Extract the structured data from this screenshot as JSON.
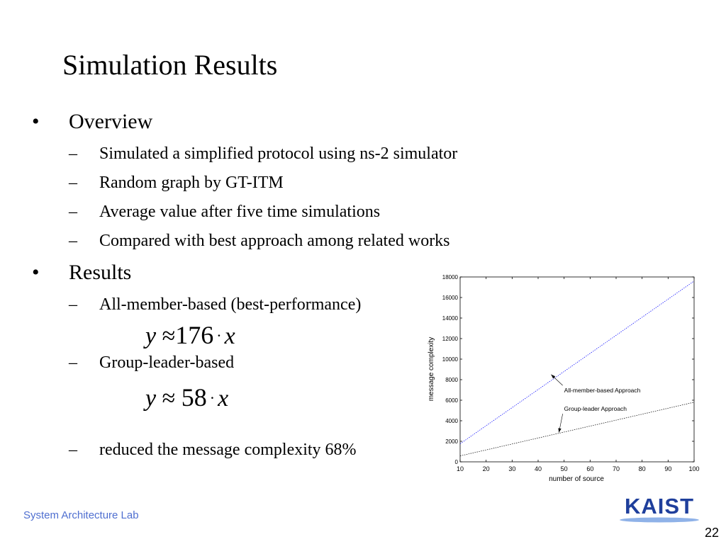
{
  "slide": {
    "title": "Simulation Results",
    "bullets": [
      {
        "marker": "•",
        "label": "Overview",
        "subitems": [
          {
            "marker": "–",
            "label": "Simulated a simplified protocol using ns-2 simulator"
          },
          {
            "marker": "–",
            "label": "Random graph by GT-ITM"
          },
          {
            "marker": "–",
            "label": "Average value after five time simulations"
          },
          {
            "marker": "–",
            "label": "Compared with best approach among related works"
          }
        ]
      },
      {
        "marker": "•",
        "label": "Results",
        "subitems": [
          {
            "marker": "–",
            "label": "All-member-based (best-performance)"
          },
          {
            "marker": "–",
            "label": "Group-leader-based"
          },
          {
            "marker": "–",
            "label": "reduced the message complexity 68%"
          }
        ]
      }
    ],
    "formulas": [
      {
        "var": "y",
        "op": "≈",
        "coef": "176",
        "dot": "·",
        "x": "x"
      },
      {
        "var": "y",
        "op": "≈",
        "coef": "58",
        "dot": "·",
        "x": "x"
      }
    ]
  },
  "footer": {
    "lab": "System Architecture Lab",
    "page_number": "22",
    "logo_text": "KAIST",
    "logo_color": "#1f3f9c"
  },
  "chart_data": {
    "type": "line",
    "x": [
      10,
      100
    ],
    "series": [
      {
        "values": [
          1760,
          17600
        ],
        "color": "#0000ff"
      },
      {
        "values": [
          580,
          5800
        ],
        "color": "#000000"
      }
    ],
    "xlabel": "number of source",
    "ylabel": "message complexity",
    "xlim": [
      10,
      100
    ],
    "ylim": [
      0,
      18000
    ],
    "xticks": [
      10,
      20,
      30,
      40,
      50,
      60,
      70,
      80,
      90,
      100
    ],
    "yticks": [
      0,
      2000,
      4000,
      6000,
      8000,
      10000,
      12000,
      14000,
      16000,
      18000
    ],
    "grid": false,
    "annotations": [
      {
        "text": "All-member-based Approach",
        "tx": 50,
        "ty": 6750,
        "ax": 45,
        "ay": 8500
      },
      {
        "text": "Group-leader Approach",
        "tx": 50,
        "ty": 4950,
        "ax": 48,
        "ay": 2850
      }
    ]
  }
}
